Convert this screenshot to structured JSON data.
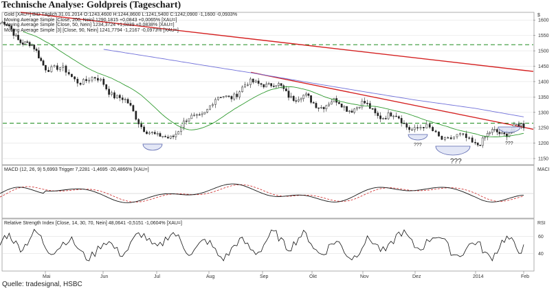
{
  "title": "Technische Analyse: Goldpreis (Tageschart)",
  "source": "Quelle: tradesignal, HSBC",
  "info_lines": {
    "price": "Gold [XAU=] BID Täglich 31.01.2014 O:1243,4600 H:1244,8600 L:1241,5400 C:1242,0900 -1,1600 -0,0933%",
    "ma200": "Moving Average Simple [Close, 200, Nein] 1290,1815 +0,0843 +0,0065% [XAU=]",
    "ma50": "Moving Average Simple [Close, 50, Nein] 1234,3724 +1,0339 +0,0838% [XAU=]",
    "ma3": "Moving Average Simple [3] [Close, 90, Nein] 1241,7794 -1,2167 -0,0973% [XAU=]",
    "macd": "MACD (12, 26, 9) 5,6993 Trigger 7,2281 -1,4695 -20,4866% [XAU=]",
    "rsi": "Relative Strength Index [Close, 14, 30, 70, Nein] 48,0641 -0,5151 -1,0604% [XAU=]"
  },
  "panel_tags": {
    "price": "$",
    "macd": "MACI",
    "rsi": "RSI"
  },
  "annotations": [
    "???",
    "???",
    "???"
  ],
  "colors": {
    "candle": "#222222",
    "ma200": "#6f6fd9",
    "ma50": "#2e9a2e",
    "ma90": "#cc2222",
    "trendline": "#d42020",
    "support": "#1a8a1a",
    "macd": "#111111",
    "trigger": "#cc2222"
  },
  "chart_data": [
    {
      "type": "line",
      "panel": "price",
      "title": "Gold [XAU=] BID Täglich",
      "x_ticks": [
        "Mai",
        "Jun",
        "Jul",
        "Aug",
        "Sep",
        "Okt",
        "Nov",
        "Dez",
        "2014",
        "Feb"
      ],
      "y_ticks": [
        1150,
        1200,
        1250,
        1300,
        1350,
        1400,
        1450,
        1500,
        1550,
        1600
      ],
      "ylim": [
        1130,
        1625
      ],
      "close_approx": [
        {
          "x": "Apr",
          "y": 1590
        },
        {
          "x": "Mai",
          "y": 1460
        },
        {
          "x": "Jun",
          "y": 1390
        },
        {
          "x": "Jul",
          "y": 1215
        },
        {
          "x": "Aug",
          "y": 1310
        },
        {
          "x": "Sep",
          "y": 1415
        },
        {
          "x": "Okt",
          "y": 1320
        },
        {
          "x": "Nov",
          "y": 1330
        },
        {
          "x": "Dez",
          "y": 1240
        },
        {
          "x": "2014",
          "y": 1215
        },
        {
          "x": "Feb",
          "y": 1242
        }
      ],
      "support_levels": [
        1520,
        1265
      ],
      "series": [
        {
          "name": "Moving Average Simple [Close, 200, Nein]",
          "last": 1290.1815
        },
        {
          "name": "Moving Average Simple [Close, 50, Nein]",
          "last": 1234.3724
        },
        {
          "name": "Moving Average Simple [3] [Close, 90, Nein]",
          "last": 1241.7794
        }
      ]
    },
    {
      "type": "line",
      "panel": "macd",
      "title": "MACD (12, 26, 9)",
      "series": [
        {
          "name": "MACD",
          "last": 5.6993
        },
        {
          "name": "Trigger",
          "last": 7.2281
        }
      ]
    },
    {
      "type": "line",
      "panel": "rsi",
      "title": "Relative Strength Index [Close, 14, 30, 70, Nein]",
      "y_ticks": [
        40,
        60
      ],
      "ylim": [
        20,
        80
      ],
      "last": 48.0641
    }
  ]
}
